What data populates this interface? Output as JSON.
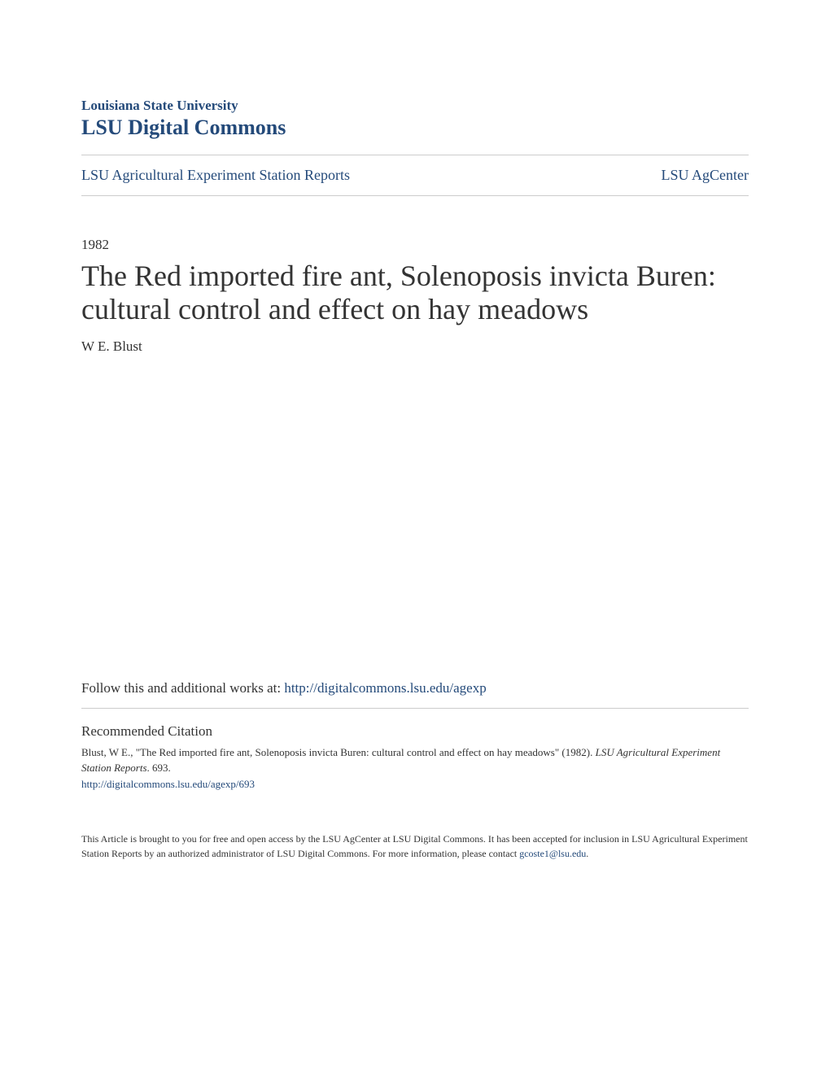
{
  "header": {
    "institution": "Louisiana State University",
    "repository": "LSU Digital Commons"
  },
  "nav": {
    "left": "LSU Agricultural Experiment Station Reports",
    "right": "LSU AgCenter"
  },
  "paper": {
    "year": "1982",
    "title": "The Red imported fire ant, Solenoposis invicta Buren: cultural control and effect on hay meadows",
    "author": "W E. Blust"
  },
  "follow": {
    "prefix": "Follow this and additional works at: ",
    "link": "http://digitalcommons.lsu.edu/agexp"
  },
  "citation": {
    "heading": "Recommended Citation",
    "text_before_italic": "Blust, W E., \"The Red imported fire ant, Solenoposis invicta Buren: cultural control and effect on hay meadows\" (1982). ",
    "italic_text": "LSU Agricultural Experiment Station Reports",
    "text_after_italic": ". 693.",
    "link": "http://digitalcommons.lsu.edu/agexp/693"
  },
  "footer": {
    "text_before_link": "This Article is brought to you for free and open access by the LSU AgCenter at LSU Digital Commons. It has been accepted for inclusion in LSU Agricultural Experiment Station Reports by an authorized administrator of LSU Digital Commons. For more information, please contact ",
    "link": "gcoste1@lsu.edu",
    "text_after_link": "."
  },
  "colors": {
    "primary": "#244a7a",
    "text": "#333333",
    "border": "#cccccc",
    "background": "#ffffff"
  },
  "typography": {
    "institution_size": 17,
    "repository_size": 26,
    "nav_size": 18,
    "year_size": 17,
    "title_size": 36,
    "author_size": 17,
    "follow_size": 17,
    "citation_heading_size": 17,
    "citation_text_size": 13,
    "footer_size": 12
  }
}
